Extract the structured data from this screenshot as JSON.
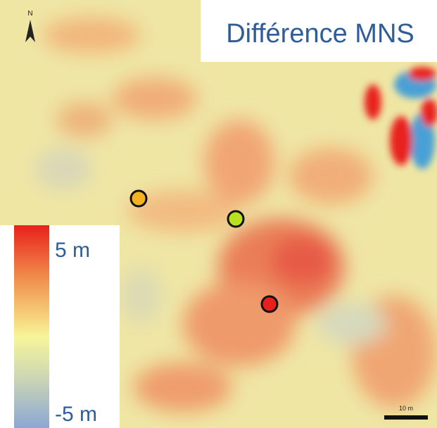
{
  "map": {
    "title": "Différence MNS",
    "north": "N",
    "legend": {
      "max_label": "5 m",
      "min_label": "-5 m"
    },
    "scale_bar": {
      "label": "10 m"
    }
  }
}
